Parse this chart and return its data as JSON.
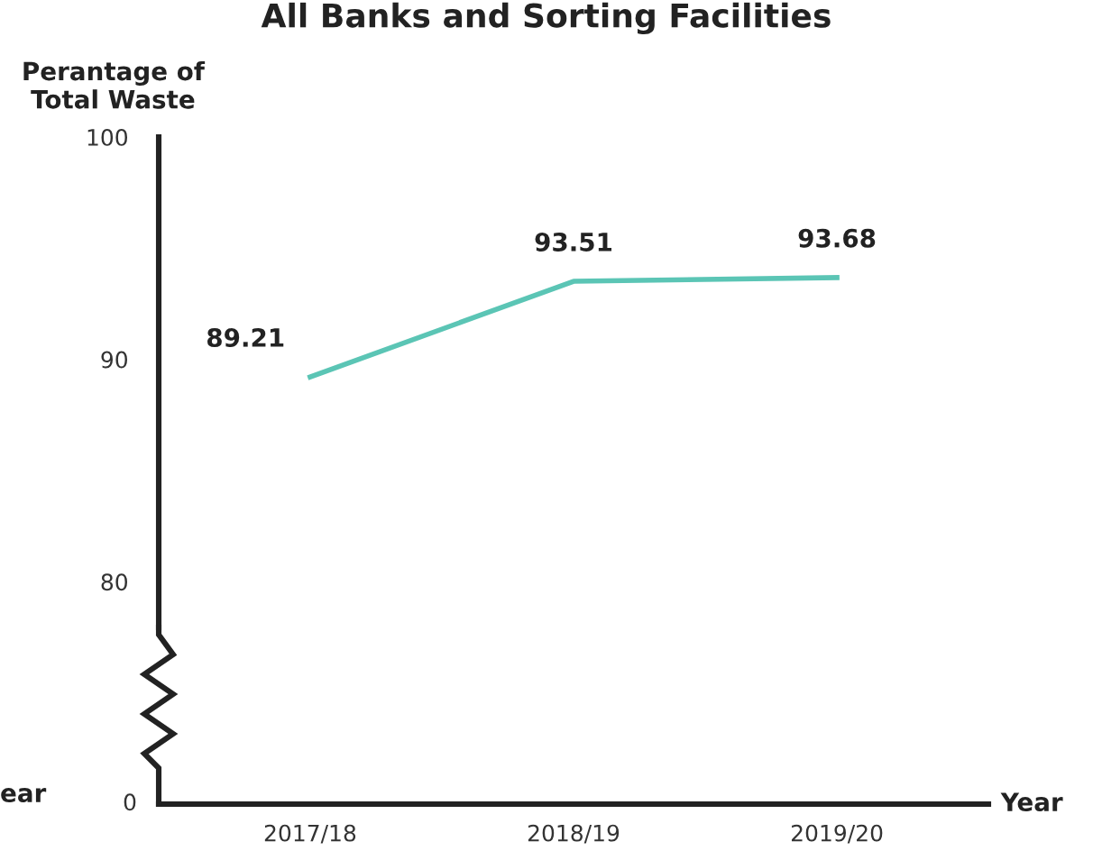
{
  "chart_data": {
    "type": "line",
    "title": "All Banks and Sorting Facilities",
    "ylabel": "Perantage of\nTotal Waste",
    "xlabel": "Year",
    "categories": [
      "2017/18",
      "2018/19",
      "2019/20"
    ],
    "series": [
      {
        "color": "#5bc5b5",
        "values": [
          89.21,
          93.51,
          93.68
        ]
      }
    ],
    "ylim": [
      70,
      100
    ],
    "yticks": [
      80,
      90,
      100
    ],
    "data_labels": true,
    "marker": "none",
    "line_style": "solid",
    "annotations": [
      "0",
      "ear"
    ]
  }
}
